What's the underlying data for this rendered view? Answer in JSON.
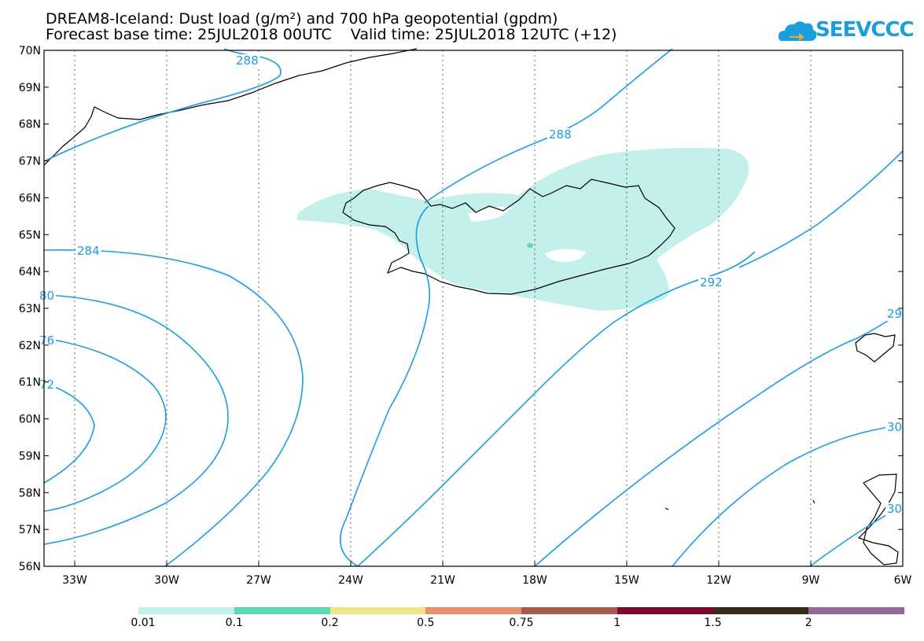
{
  "title": {
    "line1": "DREAM8-Iceland: Dust load (g/m²) and 700 hPa geopotential (gpdm)",
    "line2": "Forecast base time: 25JUL2018 00UTC    Valid time: 25JUL2018 12UTC (+12)"
  },
  "logo": {
    "text": "SEEVCCC",
    "icon": "cloud-arrow-icon",
    "color": "#1a9ee0"
  },
  "map": {
    "lat_labels": [
      "70N",
      "69N",
      "68N",
      "67N",
      "66N",
      "65N",
      "64N",
      "63N",
      "62N",
      "61N",
      "60N",
      "59N",
      "58N",
      "57N",
      "56N"
    ],
    "lon_labels": [
      "33W",
      "30W",
      "27W",
      "24W",
      "21W",
      "18W",
      "15W",
      "12W",
      "9W",
      "6W"
    ],
    "contour_color": "#1a9ee0",
    "contour_labels": [
      "288",
      "288",
      "284",
      "80",
      "76",
      "72",
      "292",
      "29",
      "30",
      "30"
    ]
  },
  "colorbar": {
    "colors": [
      "#c3f0ea",
      "#5fd9b4",
      "#f2e68a",
      "#e98e6e",
      "#a85a4e",
      "#7d0a2c",
      "#3a2a1a",
      "#926a9a"
    ],
    "tick_labels": [
      "0.01",
      "0.1",
      "0.2",
      "0.5",
      "0.75",
      "1",
      "1.5",
      "2"
    ]
  }
}
